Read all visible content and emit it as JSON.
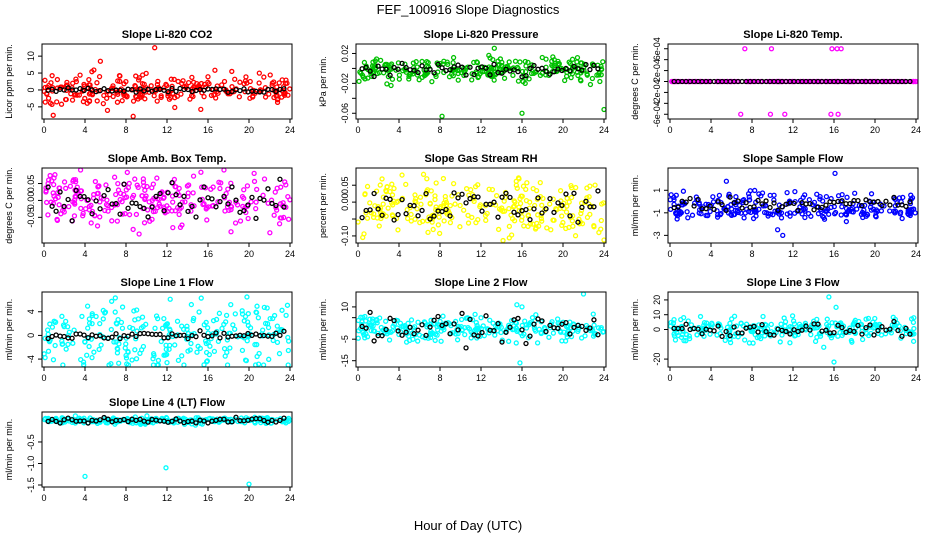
{
  "figure": {
    "title": "FEF_100916  Slope Diagnostics",
    "xlabel": "Hour of Day (UTC)"
  },
  "chart_data": [
    {
      "type": "scatter",
      "title": "Slope Li-820 CO2",
      "ylabel": "Licor ppm per min.",
      "xlim": [
        0,
        24
      ],
      "xticks": [
        0,
        4,
        8,
        12,
        16,
        20,
        24
      ],
      "ylim": [
        -8,
        13
      ],
      "yticks": [
        -5,
        0,
        5,
        10
      ],
      "ytick_labels": [
        "-5",
        "0",
        "5",
        "10"
      ],
      "color": "#ff0000",
      "center": 0,
      "spread": 2.2,
      "ref_spread": 0.3,
      "outliers": [
        {
          "x": 10.8,
          "y": 12.5
        },
        {
          "x": 0.9,
          "y": -7.5
        },
        {
          "x": 8.7,
          "y": -7.8
        },
        {
          "x": 5.5,
          "y": 8.5
        }
      ]
    },
    {
      "type": "scatter",
      "title": "Slope Li-820 Pressure",
      "ylabel": "kPa per min.",
      "xlim": [
        0,
        24
      ],
      "xticks": [
        0,
        4,
        8,
        12,
        16,
        20,
        24
      ],
      "ylim": [
        -0.065,
        0.03
      ],
      "yticks": [
        -0.06,
        -0.04,
        -0.02,
        0.0,
        0.02
      ],
      "ytick_labels": [
        "-0.06",
        "",
        "-0.02",
        "",
        "0.02"
      ],
      "color": "#00c000",
      "center": -0.002,
      "spread": 0.008,
      "ref_spread": 0.005,
      "outliers": [
        {
          "x": 13.3,
          "y": 0.027
        },
        {
          "x": 8.2,
          "y": -0.064
        },
        {
          "x": 16.0,
          "y": -0.06
        },
        {
          "x": 24.0,
          "y": -0.055
        }
      ]
    },
    {
      "type": "scatter",
      "title": "Slope Li-820 Temp.",
      "ylabel": "degrees C per min.",
      "xlim": [
        0,
        24
      ],
      "xticks": [
        0,
        4,
        8,
        12,
        16,
        20,
        24
      ],
      "ylim": [
        -0.00065,
        0.00065
      ],
      "yticks": [
        -0.0006,
        -0.0004,
        -0.0002,
        0,
        0.0002,
        0.0004,
        0.0006
      ],
      "ytick_labels": [
        "-6e-04",
        "",
        "-2e-04",
        "",
        "2e-04",
        "",
        "6e-04"
      ],
      "color": "#ff00ff",
      "center": 0,
      "spread": 0,
      "ref_spread": 0,
      "outliers": [
        {
          "x": 7.3,
          "y": 0.0006
        },
        {
          "x": 9.9,
          "y": 0.0006
        },
        {
          "x": 15.8,
          "y": 0.0006
        },
        {
          "x": 16.3,
          "y": 0.0006
        },
        {
          "x": 16.7,
          "y": 0.0006
        },
        {
          "x": 6.9,
          "y": -0.0006
        },
        {
          "x": 9.8,
          "y": -0.0006
        },
        {
          "x": 11.2,
          "y": -0.0006
        },
        {
          "x": 15.7,
          "y": -0.0006
        },
        {
          "x": 16.4,
          "y": -0.0006
        }
      ]
    },
    {
      "type": "scatter",
      "title": "Slope Amb. Box Temp.",
      "ylabel": "degrees C per min.",
      "xlim": [
        0,
        24
      ],
      "xticks": [
        0,
        4,
        8,
        12,
        16,
        20,
        24
      ],
      "ylim": [
        -0.12,
        0.09
      ],
      "yticks": [
        -0.05,
        0.0,
        0.05
      ],
      "ytick_labels": [
        "-0.05",
        "0.00",
        "0.05"
      ],
      "color": "#ff00ff",
      "center": 0,
      "spread": 0.04,
      "ref_spread": 0.03,
      "outliers": [
        {
          "x": 0.4,
          "y": 0.05
        },
        {
          "x": 20.5,
          "y": 0.08
        }
      ]
    },
    {
      "type": "scatter",
      "title": "Slope Gas Stream RH",
      "ylabel": "percent per min.",
      "xlim": [
        0,
        24
      ],
      "xticks": [
        0,
        4,
        8,
        12,
        16,
        20,
        24
      ],
      "ylim": [
        -0.115,
        0.095
      ],
      "yticks": [
        -0.1,
        -0.05,
        0.0,
        0.05
      ],
      "ytick_labels": [
        "-0.10",
        "",
        "0.00",
        "0.05"
      ],
      "color": "#ffff00",
      "center": -0.01,
      "spread": 0.04,
      "ref_spread": 0.025,
      "outliers": [
        {
          "x": 24.0,
          "y": -0.112
        },
        {
          "x": 23.5,
          "y": -0.09
        }
      ]
    },
    {
      "type": "scatter",
      "title": "Slope Sample Flow",
      "ylabel": "ml/min per min.",
      "xlim": [
        0,
        24
      ],
      "xticks": [
        0,
        4,
        8,
        12,
        16,
        20,
        24
      ],
      "ylim": [
        -3.5,
        2.8
      ],
      "yticks": [
        -3,
        -1,
        1
      ],
      "ytick_labels": [
        "-3",
        "-1",
        "1"
      ],
      "color": "#0000ff",
      "center": -0.2,
      "spread": 0.6,
      "ref_spread": 0.3,
      "outliers": [
        {
          "x": 5.5,
          "y": 1.8
        },
        {
          "x": 16.1,
          "y": 2.5
        },
        {
          "x": 11.0,
          "y": -3.0
        },
        {
          "x": 10.5,
          "y": -2.5
        }
      ]
    },
    {
      "type": "scatter",
      "title": "Slope Line 1 Flow",
      "ylabel": "ml/min per min.",
      "xlim": [
        0,
        24
      ],
      "xticks": [
        0,
        4,
        8,
        12,
        16,
        20,
        24
      ],
      "ylim": [
        -5,
        7
      ],
      "yticks": [
        -4,
        0,
        4
      ],
      "ytick_labels": [
        "-4",
        "0",
        "4"
      ],
      "color": "#00ffff",
      "center": 0,
      "spread": 3.0,
      "ref_spread": 0.3,
      "outliers": [
        {
          "x": 12.0,
          "y": -4.6
        },
        {
          "x": 19.8,
          "y": 6.5
        }
      ]
    },
    {
      "type": "scatter",
      "title": "Slope Line 2 Flow",
      "ylabel": "ml/min per min.",
      "xlim": [
        0,
        24
      ],
      "xticks": [
        0,
        4,
        8,
        12,
        16,
        20,
        24
      ],
      "ylim": [
        -17,
        16
      ],
      "yticks": [
        -15,
        -5,
        5,
        10
      ],
      "ytick_labels": [
        "-15",
        "-5",
        "",
        "10"
      ],
      "color": "#00ffff",
      "center": 0,
      "spread": 3.0,
      "ref_spread": 3.0,
      "outliers": [
        {
          "x": 15.8,
          "y": -16
        },
        {
          "x": 15.5,
          "y": 11
        },
        {
          "x": 16.0,
          "y": 10
        },
        {
          "x": 14.7,
          "y": -6
        },
        {
          "x": 22.0,
          "y": 16
        }
      ]
    },
    {
      "type": "scatter",
      "title": "Slope Line 3 Flow",
      "ylabel": "ml/min per min.",
      "xlim": [
        0,
        24
      ],
      "xticks": [
        0,
        4,
        8,
        12,
        16,
        20,
        24
      ],
      "ylim": [
        -24,
        24
      ],
      "yticks": [
        -20,
        0,
        10,
        20
      ],
      "ytick_labels": [
        "-20",
        "0",
        "10",
        "20"
      ],
      "color": "#00ffff",
      "center": 0,
      "spread": 4.0,
      "ref_spread": 2.0,
      "outliers": [
        {
          "x": 16.0,
          "y": -22
        },
        {
          "x": 15.5,
          "y": 22
        },
        {
          "x": 16.2,
          "y": 15
        },
        {
          "x": 15.0,
          "y": -12
        }
      ]
    },
    {
      "type": "scatter",
      "title": "Slope Line 4 (LT) Flow",
      "ylabel": "ml/min per min.",
      "xlim": [
        0,
        24
      ],
      "xticks": [
        0,
        4,
        8,
        12,
        16,
        20,
        24
      ],
      "ylim": [
        -1.5,
        0.15
      ],
      "yticks": [
        -1.5,
        -1.0,
        -0.5
      ],
      "ytick_labels": [
        "-1.5",
        "-1.0",
        "-0.5"
      ],
      "color": "#00ffff",
      "center": 0,
      "spread": 0.04,
      "ref_spread": 0.03,
      "outliers": [
        {
          "x": 4.0,
          "y": -1.3
        },
        {
          "x": 11.9,
          "y": -1.1
        },
        {
          "x": 20.0,
          "y": -1.48
        }
      ]
    }
  ]
}
